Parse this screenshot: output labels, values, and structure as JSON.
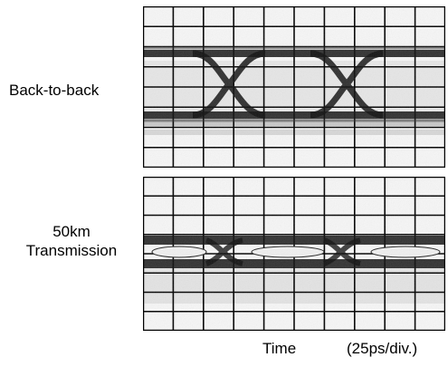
{
  "labels": {
    "back_to_back": "Back-to-back",
    "transmission_line1": "50km",
    "transmission_line2": "Transmission"
  },
  "x_axis": {
    "label": "Time",
    "scale": "(25ps/div.)"
  },
  "colors": {
    "grid": "#000000",
    "trace": "#111111",
    "background": "#f4f4f4"
  },
  "panels": [
    {
      "id": "back-to-back",
      "name": "Back-to-back",
      "grid_cols": 10,
      "grid_rows": 8,
      "eye": "open"
    },
    {
      "id": "50km-transmission",
      "name": "50km Transmission",
      "grid_cols": 10,
      "grid_rows": 8,
      "eye": "closing"
    }
  ]
}
